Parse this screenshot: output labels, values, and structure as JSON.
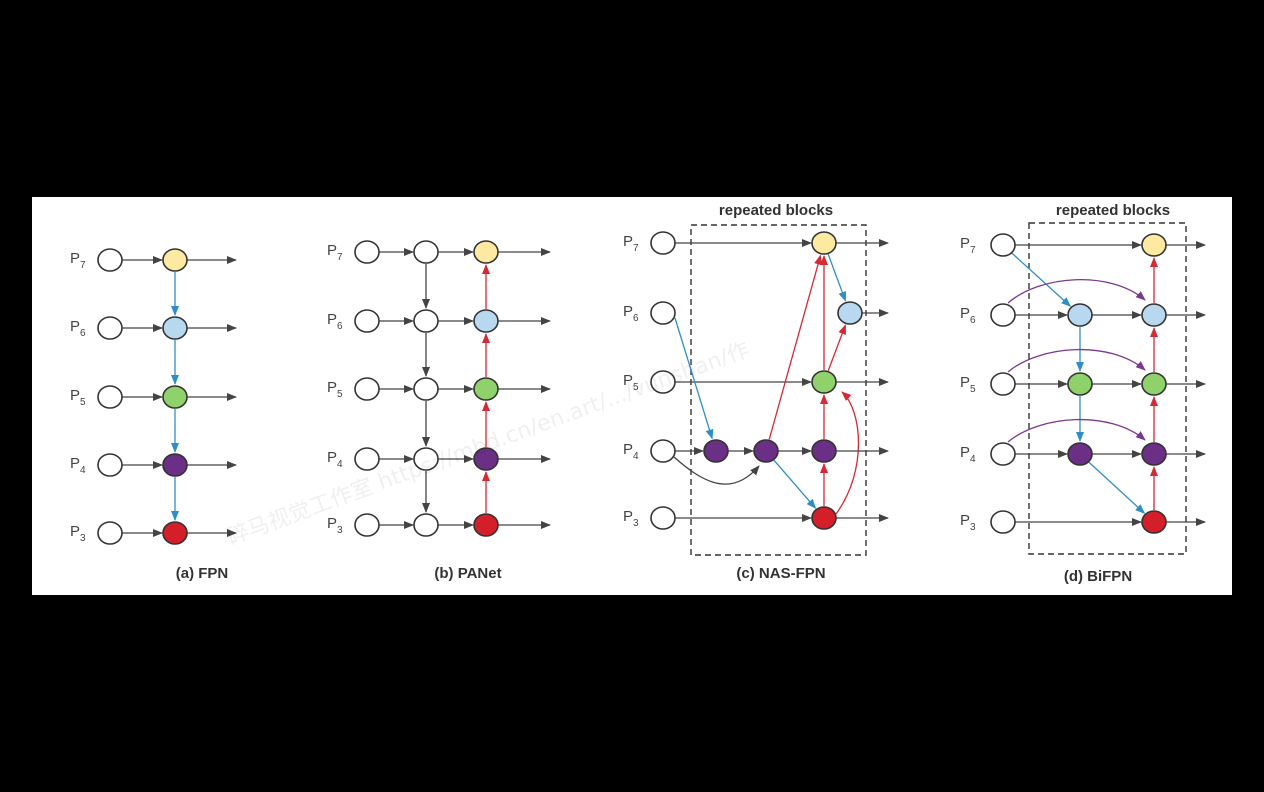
{
  "colors": {
    "background": "#000000",
    "panel": "#ffffff",
    "node_input": "#ffffff",
    "p7_fused": "#fde9a0",
    "p6_fused": "#b8d8ef",
    "p5_fused": "#8fd16a",
    "p4_fused": "#6b2f85",
    "p3_fused": "#d41f2b",
    "arrow_gray": "#444444",
    "arrow_blue": "#2f8ec8",
    "arrow_red": "#d42a35",
    "arrow_purple": "#7a3a8c"
  },
  "levels": [
    {
      "key": "p7",
      "base": "P",
      "sub": "7"
    },
    {
      "key": "p6",
      "base": "P",
      "sub": "6"
    },
    {
      "key": "p5",
      "base": "P",
      "sub": "5"
    },
    {
      "key": "p4",
      "base": "P",
      "sub": "4"
    },
    {
      "key": "p3",
      "base": "P",
      "sub": "3"
    }
  ],
  "panels": [
    {
      "id": "fpn",
      "caption": "(a) FPN"
    },
    {
      "id": "panet",
      "caption": "(b) PANet"
    },
    {
      "id": "nasfpn",
      "caption": "(c) NAS-FPN",
      "box_label": "repeated blocks"
    },
    {
      "id": "bifpn",
      "caption": "(d) BiFPN",
      "box_label": "repeated blocks"
    }
  ],
  "watermark": "碎马视觉工作室 https://mbd.cn/en.art/.../vunshan/作"
}
